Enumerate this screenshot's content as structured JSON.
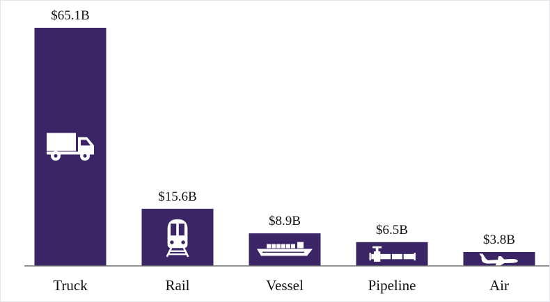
{
  "chart_data": {
    "type": "bar",
    "categories": [
      "Truck",
      "Rail",
      "Vessel",
      "Pipeline",
      "Air"
    ],
    "values": [
      65.1,
      15.6,
      8.9,
      6.5,
      3.8
    ],
    "value_labels": [
      "$65.1B",
      "$15.6B",
      "$8.9B",
      "$6.5B",
      "$3.8B"
    ],
    "icons": [
      "truck-icon",
      "train-icon",
      "ship-icon",
      "pipeline-icon",
      "airplane-icon"
    ],
    "ylim": [
      0,
      65.1
    ],
    "grid": false,
    "legend": "none",
    "colors": {
      "bar": "#3b2566",
      "icon": "#ffffff",
      "baseline": "#6e6e6e",
      "text": "#111111"
    }
  }
}
